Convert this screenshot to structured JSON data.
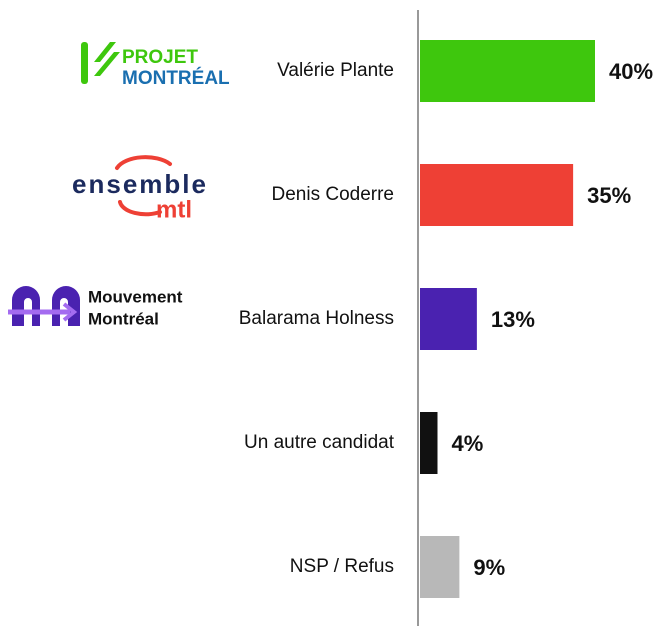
{
  "chart_data": {
    "type": "bar",
    "orientation": "horizontal",
    "categories": [
      "Valérie Plante",
      "Denis Coderre",
      "Balarama Holness",
      "Un autre candidat",
      "NSP / Refus"
    ],
    "values": [
      40,
      35,
      13,
      4,
      9
    ],
    "value_labels": [
      "40%",
      "35%",
      "13%",
      "4%",
      "9%"
    ],
    "colors": [
      "#3ec70d",
      "#ee4035",
      "#4a22b0",
      "#111111",
      "#b8b8b8"
    ],
    "logos": [
      [
        "PROJET",
        "MONTRÉAL"
      ],
      [
        "ensemble",
        "mtl"
      ],
      [
        "Mouvement",
        "Montréal"
      ],
      null,
      null
    ],
    "xlim": [
      0,
      40
    ]
  }
}
